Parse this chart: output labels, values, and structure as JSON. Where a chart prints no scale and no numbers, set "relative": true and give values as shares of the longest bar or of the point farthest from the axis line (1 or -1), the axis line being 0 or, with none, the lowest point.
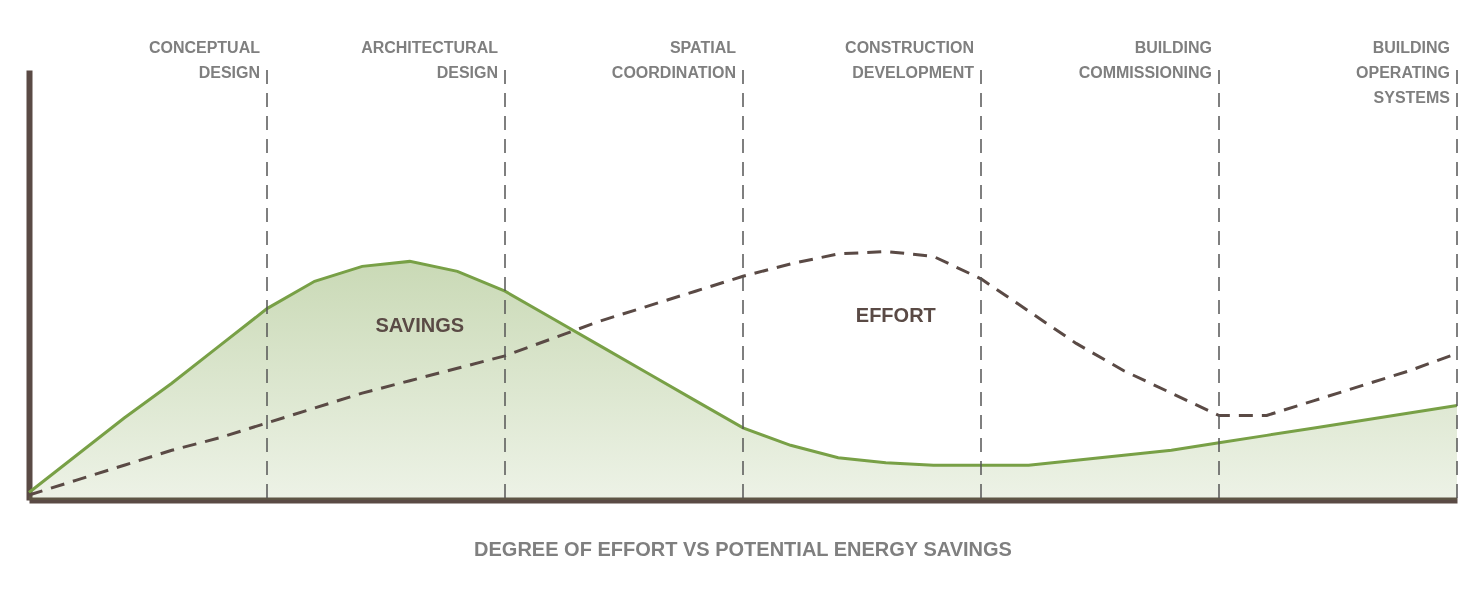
{
  "chart_data": {
    "type": "line",
    "title": "DEGREE OF EFFORT VS POTENTIAL ENERGY SAVINGS",
    "relative": true,
    "grid": "x",
    "categories": [
      null,
      null,
      null,
      null,
      null,
      null,
      null,
      null,
      null,
      null,
      null,
      null,
      null,
      null,
      null,
      null,
      null,
      null,
      null,
      null,
      null,
      null,
      null,
      null,
      null,
      null,
      null,
      null,
      null,
      null,
      null
    ],
    "series": [
      {
        "name": "SAVINGS",
        "type": "area",
        "color": "#78a046",
        "values": [
          0.03,
          0.18,
          0.33,
          0.47,
          0.62,
          0.77,
          0.88,
          0.94,
          0.96,
          0.92,
          0.84,
          0.73,
          0.62,
          0.51,
          0.4,
          0.29,
          0.22,
          0.17,
          0.15,
          0.14,
          0.14,
          0.14,
          0.16,
          0.18,
          0.2,
          0.23,
          0.26,
          0.29,
          0.32,
          0.35,
          0.38
        ]
      },
      {
        "name": "EFFORT",
        "line_style": "dashed",
        "color": "#5a4a45",
        "values": [
          0.02,
          0.08,
          0.14,
          0.2,
          0.25,
          0.31,
          0.37,
          0.43,
          0.48,
          0.53,
          0.58,
          0.65,
          0.72,
          0.78,
          0.84,
          0.9,
          0.95,
          0.99,
          1,
          0.98,
          0.89,
          0.76,
          0.63,
          0.52,
          0.43,
          0.34,
          0.34,
          0.4,
          0.46,
          0.52,
          0.59
        ]
      }
    ],
    "annotations": [
      "CONCEPTUAL\nDESIGN",
      "ARCHITECTURAL\nDESIGN",
      "SPATIAL\nCOORDINATION",
      "CONSTRUCTION\nDEVELOPMENT",
      "BUILDING\nCOMMISSIONING",
      "BUILDING\nOPERATING\nSYSTEMS"
    ]
  }
}
